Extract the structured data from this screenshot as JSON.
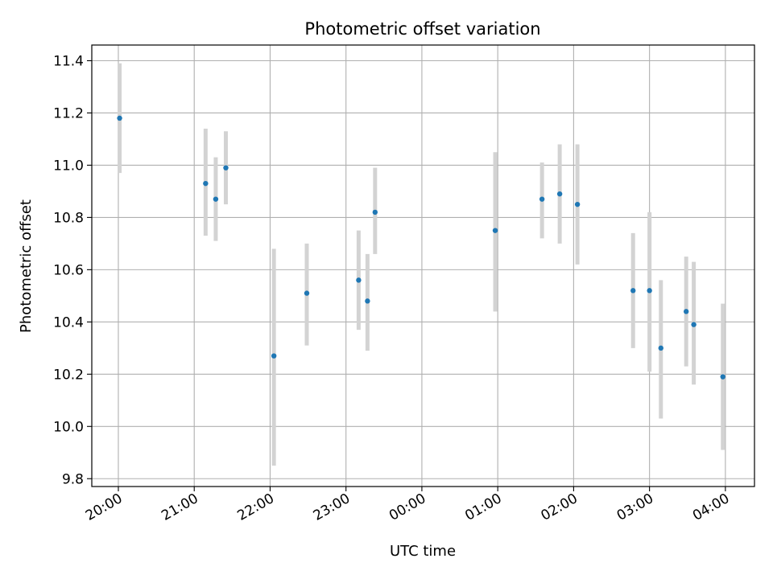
{
  "chart_data": {
    "type": "scatter",
    "title": "Photometric offset variation",
    "xlabel": "UTC time",
    "ylabel": "Photometric offset",
    "grid": true,
    "x_ticks": [
      "20:00",
      "21:00",
      "22:00",
      "23:00",
      "00:00",
      "01:00",
      "02:00",
      "03:00",
      "04:00"
    ],
    "x_range": [
      "19:39",
      "04:23"
    ],
    "ylim": [
      9.77,
      11.46
    ],
    "y_ticks": [
      "9.8",
      "10.0",
      "10.2",
      "10.4",
      "10.6",
      "10.8",
      "11.0",
      "11.2",
      "11.4"
    ],
    "colors": {
      "point": "#1f77b4",
      "errorbar": "#d3d3d3",
      "grid": "#b0b0b0"
    },
    "points": [
      {
        "x": "20:01",
        "y": 11.18,
        "ylow": 10.97,
        "yhigh": 11.39
      },
      {
        "x": "21:09",
        "y": 10.93,
        "ylow": 10.73,
        "yhigh": 11.14
      },
      {
        "x": "21:17",
        "y": 10.87,
        "ylow": 10.71,
        "yhigh": 11.03
      },
      {
        "x": "21:25",
        "y": 10.99,
        "ylow": 10.85,
        "yhigh": 11.13
      },
      {
        "x": "22:03",
        "y": 10.27,
        "ylow": 9.85,
        "yhigh": 10.68
      },
      {
        "x": "22:29",
        "y": 10.51,
        "ylow": 10.31,
        "yhigh": 10.7
      },
      {
        "x": "23:10",
        "y": 10.56,
        "ylow": 10.37,
        "yhigh": 10.75
      },
      {
        "x": "23:17",
        "y": 10.48,
        "ylow": 10.29,
        "yhigh": 10.66
      },
      {
        "x": "23:23",
        "y": 10.82,
        "ylow": 10.66,
        "yhigh": 10.99
      },
      {
        "x": "00:58",
        "y": 10.75,
        "ylow": 10.44,
        "yhigh": 11.05
      },
      {
        "x": "01:35",
        "y": 10.87,
        "ylow": 10.72,
        "yhigh": 11.01
      },
      {
        "x": "01:49",
        "y": 10.89,
        "ylow": 10.7,
        "yhigh": 11.08
      },
      {
        "x": "02:03",
        "y": 10.85,
        "ylow": 10.62,
        "yhigh": 11.08
      },
      {
        "x": "02:47",
        "y": 10.52,
        "ylow": 10.3,
        "yhigh": 10.74
      },
      {
        "x": "03:00",
        "y": 10.52,
        "ylow": 10.21,
        "yhigh": 10.82
      },
      {
        "x": "03:09",
        "y": 10.3,
        "ylow": 10.03,
        "yhigh": 10.56
      },
      {
        "x": "03:29",
        "y": 10.44,
        "ylow": 10.23,
        "yhigh": 10.65
      },
      {
        "x": "03:35",
        "y": 10.39,
        "ylow": 10.16,
        "yhigh": 10.63
      },
      {
        "x": "03:58",
        "y": 10.19,
        "ylow": 9.91,
        "yhigh": 10.47
      }
    ]
  }
}
